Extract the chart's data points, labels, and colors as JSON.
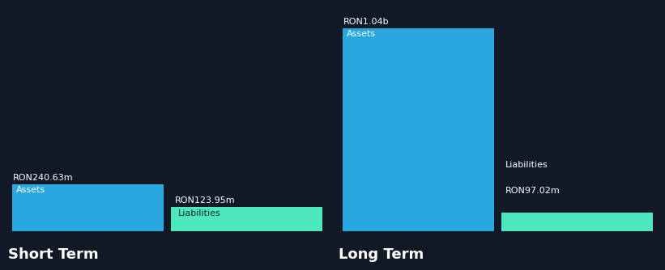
{
  "background_color": "#111927",
  "asset_color": "#29a8e0",
  "liability_color": "#4de8c0",
  "text_color": "#ffffff",
  "dark_text_color": "#1a2535",
  "groups": [
    "Short Term",
    "Long Term"
  ],
  "assets_m": [
    240.63,
    1040.0
  ],
  "liabilities_m": [
    123.95,
    97.02
  ],
  "asset_value_labels": [
    "RON240.63m",
    "RON1.04b"
  ],
  "liability_value_labels": [
    "RON123.95m",
    "RON97.02m"
  ],
  "asset_inside_label": "Assets",
  "liability_inside_label": "Liabilities",
  "group_label_fontsize": 13,
  "bar_label_fontsize": 8,
  "value_label_fontsize": 8,
  "y_max": 1100,
  "separator_color": "#2a3a4a"
}
